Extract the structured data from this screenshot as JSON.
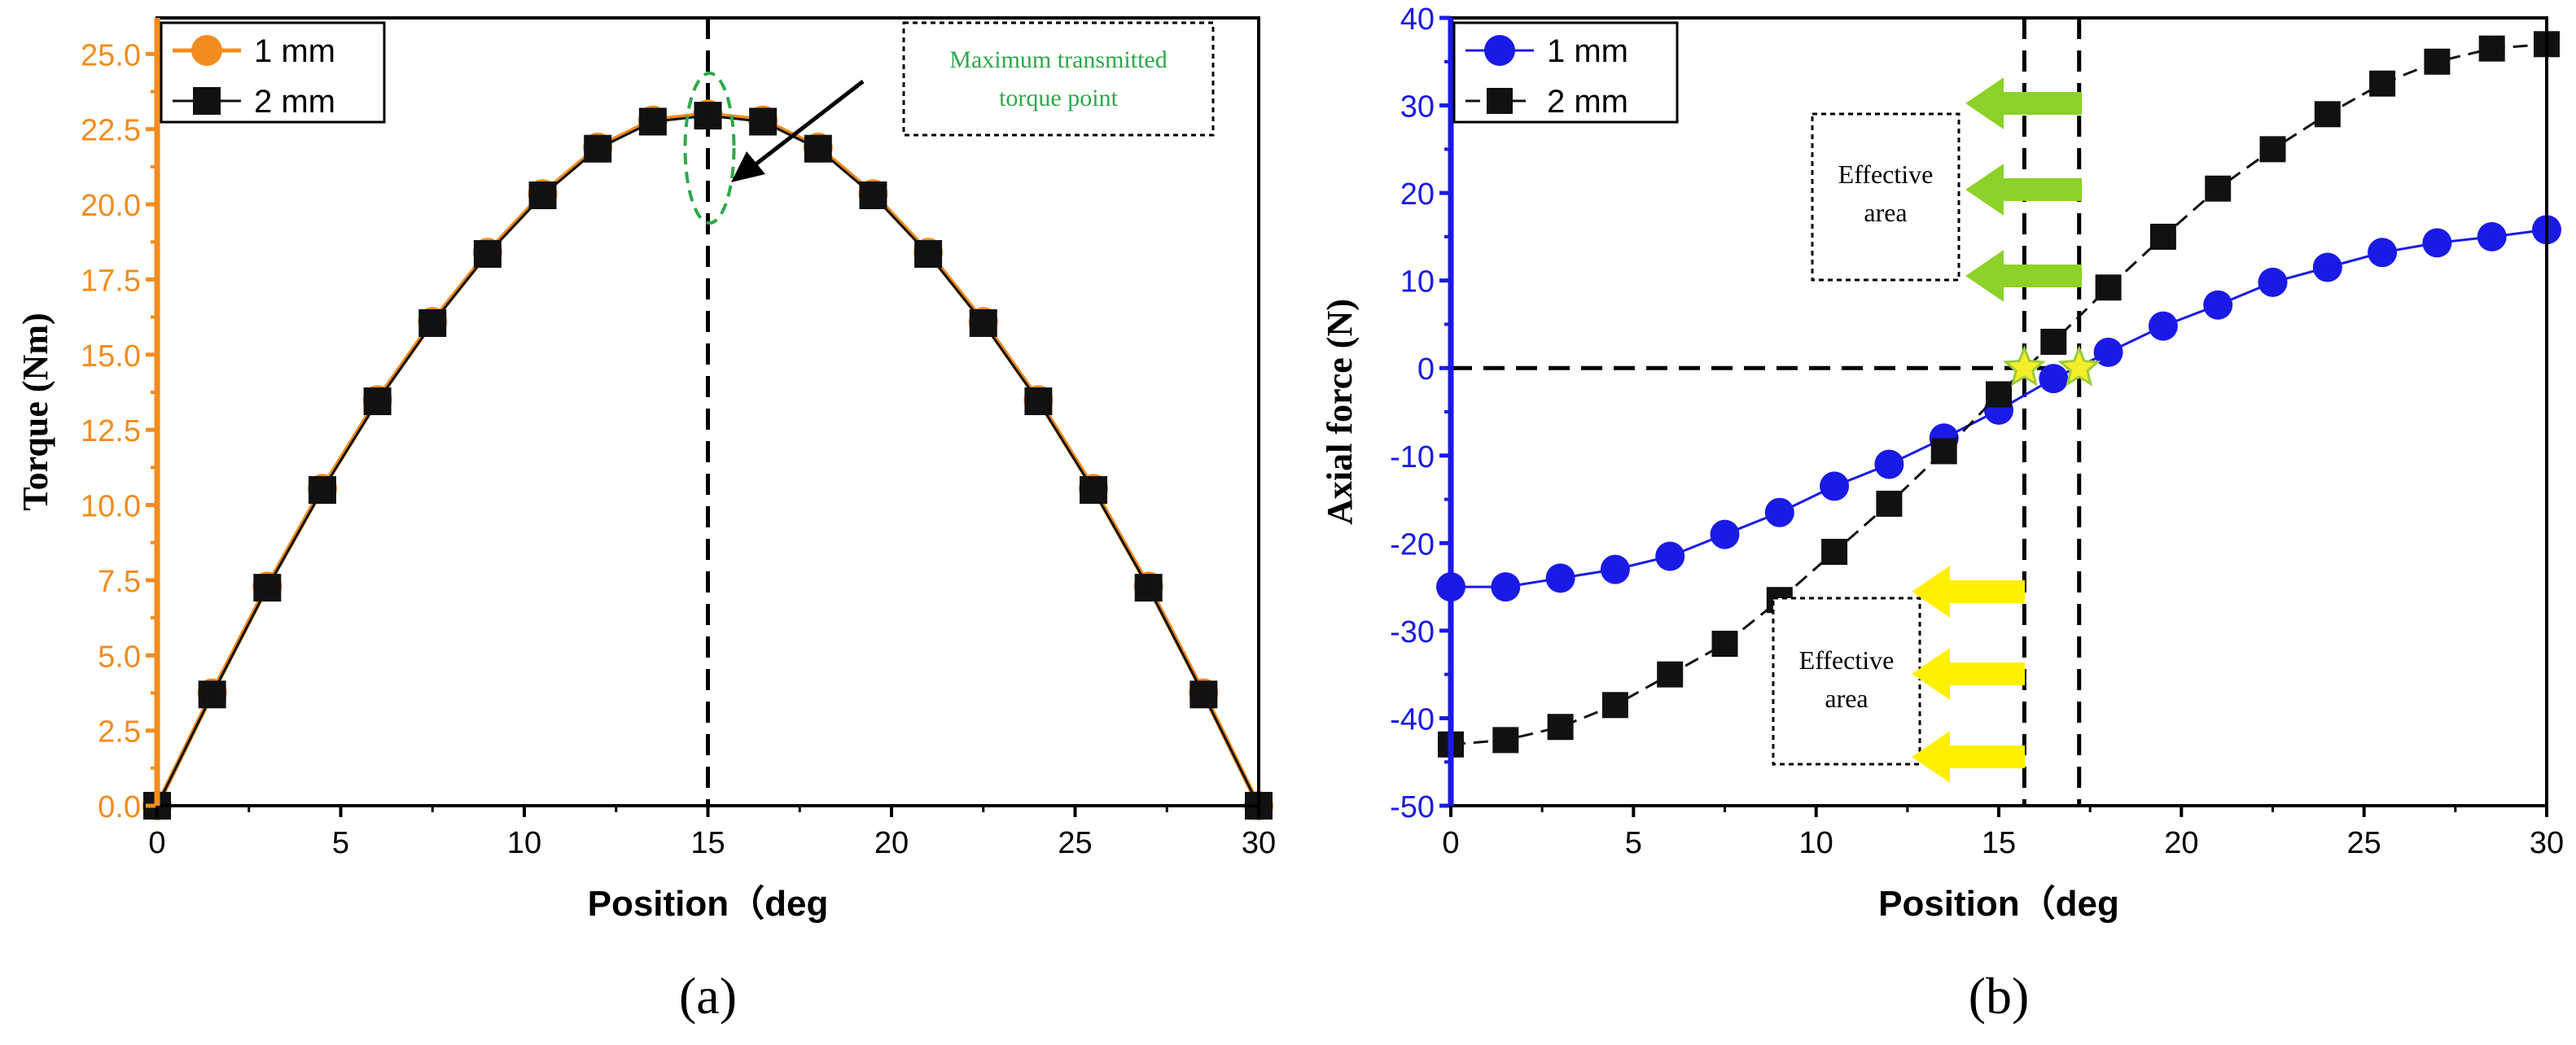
{
  "chart_data": [
    {
      "type": "line",
      "panel_label": "(a)",
      "xlabel": "Position（deg",
      "ylabel": "Torque (Nm)",
      "xlim": [
        0,
        30
      ],
      "ylim": [
        0,
        26.2
      ],
      "xticks": [
        0,
        5,
        10,
        15,
        20,
        25,
        30
      ],
      "yticks": [
        0.0,
        2.5,
        5.0,
        7.5,
        10.0,
        12.5,
        15.0,
        17.5,
        20.0,
        22.5,
        25.0
      ],
      "ytick_labels": [
        "0.0",
        "2.5",
        "5.0",
        "7.5",
        "10.0",
        "12.5",
        "15.0",
        "17.5",
        "20.0",
        "22.5",
        "25.0"
      ],
      "axis_color": "#F28C1E",
      "x": [
        0,
        1.5,
        3,
        4.5,
        6,
        7.5,
        9,
        10.5,
        12,
        13.5,
        15,
        16.5,
        18,
        19.5,
        21,
        22.5,
        24,
        25.5,
        27,
        28.5,
        30
      ],
      "series": [
        {
          "name": "1 mm",
          "color": "#F28C1E",
          "marker": "circle",
          "values": [
            0,
            3.75,
            7.3,
            10.55,
            13.5,
            16.1,
            18.4,
            20.35,
            21.9,
            22.8,
            23.0,
            22.8,
            21.9,
            20.35,
            18.4,
            16.1,
            13.5,
            10.55,
            7.3,
            3.75,
            0
          ]
        },
        {
          "name": "2 mm",
          "color": "#111111",
          "marker": "square",
          "values": [
            0,
            3.7,
            7.25,
            10.5,
            13.45,
            16.05,
            18.35,
            20.3,
            21.85,
            22.75,
            22.95,
            22.75,
            21.85,
            20.3,
            18.35,
            16.05,
            13.45,
            10.5,
            7.25,
            3.7,
            0
          ]
        }
      ],
      "vline": 15,
      "annotation": {
        "line1": "Maximum transmitted",
        "line2": "torque point",
        "color": "#2DA84A"
      }
    },
    {
      "type": "line",
      "panel_label": "(b)",
      "xlabel": "Position（deg",
      "ylabel": "Axial force (N)",
      "xlim": [
        0,
        30
      ],
      "ylim": [
        -50,
        40
      ],
      "xticks": [
        0,
        5,
        10,
        15,
        20,
        25,
        30
      ],
      "yticks": [
        -50,
        -40,
        -30,
        -20,
        -10,
        0,
        10,
        20,
        30,
        40
      ],
      "axis_color": "#1A1AE6",
      "x": [
        0,
        1.5,
        3,
        4.5,
        6,
        7.5,
        9,
        10.5,
        12,
        13.5,
        15,
        16.5,
        18,
        19.5,
        21,
        22.5,
        24,
        25.5,
        27,
        28.5,
        30
      ],
      "series": [
        {
          "name": "1 mm",
          "color": "#1A1AE6",
          "marker": "circle",
          "values": [
            -25,
            -25,
            -24,
            -23,
            -21.5,
            -19,
            -16.5,
            -13.5,
            -11,
            -8,
            -4.8,
            -1.2,
            1.8,
            4.8,
            7.2,
            9.8,
            11.5,
            13.2,
            14.3,
            15,
            15.8
          ]
        },
        {
          "name": "2 mm",
          "color": "#111111",
          "marker": "square",
          "values": [
            -43,
            -42.5,
            -41,
            -38.5,
            -35,
            -31.5,
            -26.5,
            -21,
            -15.5,
            -9.5,
            -3,
            3,
            9.2,
            15,
            20.5,
            25,
            29,
            32.5,
            35,
            36.5,
            37
          ]
        }
      ],
      "hline": 0,
      "vlines": [
        15.7,
        17.2
      ],
      "zero_crossings": [
        15.7,
        17.2
      ],
      "effective_area_label": {
        "line1": "Effective",
        "line2": "area"
      },
      "arrow_colors": {
        "upper": "#8CD228",
        "lower": "#FFF000"
      }
    }
  ]
}
